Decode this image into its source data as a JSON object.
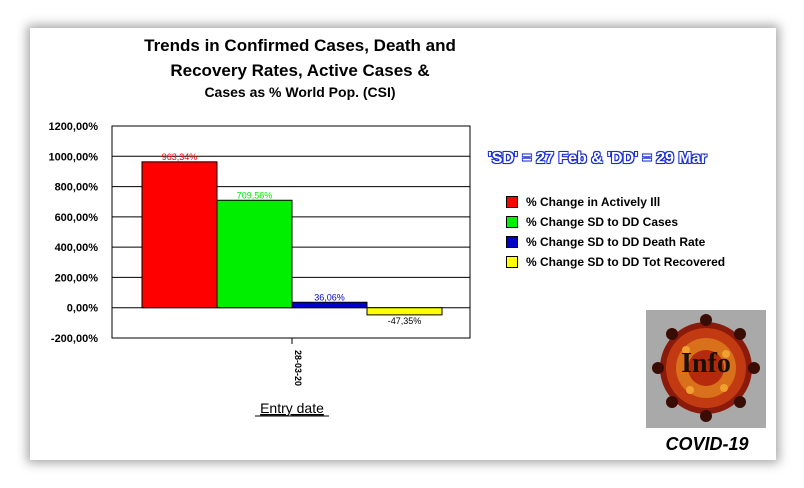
{
  "title_lines": [
    "Trends in Confirmed Cases, Death and",
    "Recovery Rates, Active Cases &",
    "Cases as % World Pop. (CSI)"
  ],
  "note": "'SD' = 27 Feb & 'DD' = 29 Mar",
  "logo_text": "Info",
  "caption": "COVID-19",
  "chart_data": {
    "type": "bar",
    "categories": [
      "28-03-20"
    ],
    "xlabel": "Entry date",
    "ylabel": "",
    "ylim": [
      -200,
      1200
    ],
    "yticks": [
      1200,
      1000,
      800,
      600,
      400,
      200,
      0,
      -200
    ],
    "ytick_labels": [
      "1200,00%",
      "1000,00%",
      "800,00%",
      "600,00%",
      "400,00%",
      "200,00%",
      "0,00%",
      "-200,00%"
    ],
    "grid": true,
    "legend_position": "right",
    "series": [
      {
        "name": "% Change in Actively Ill",
        "values": [
          963.34
        ],
        "label": "963,34%",
        "color": "#ff0000"
      },
      {
        "name": "% Change SD to DD Cases",
        "values": [
          709.56
        ],
        "label": "709,56%",
        "color": "#00ee00"
      },
      {
        "name": "% Change SD to DD Death Rate",
        "values": [
          36.06
        ],
        "label": "36,06%",
        "color": "#0000cc"
      },
      {
        "name": "% Change SD to DD Tot Recovered",
        "values": [
          -47.35
        ],
        "label": "-47,35%",
        "color": "#ffff00"
      }
    ]
  }
}
